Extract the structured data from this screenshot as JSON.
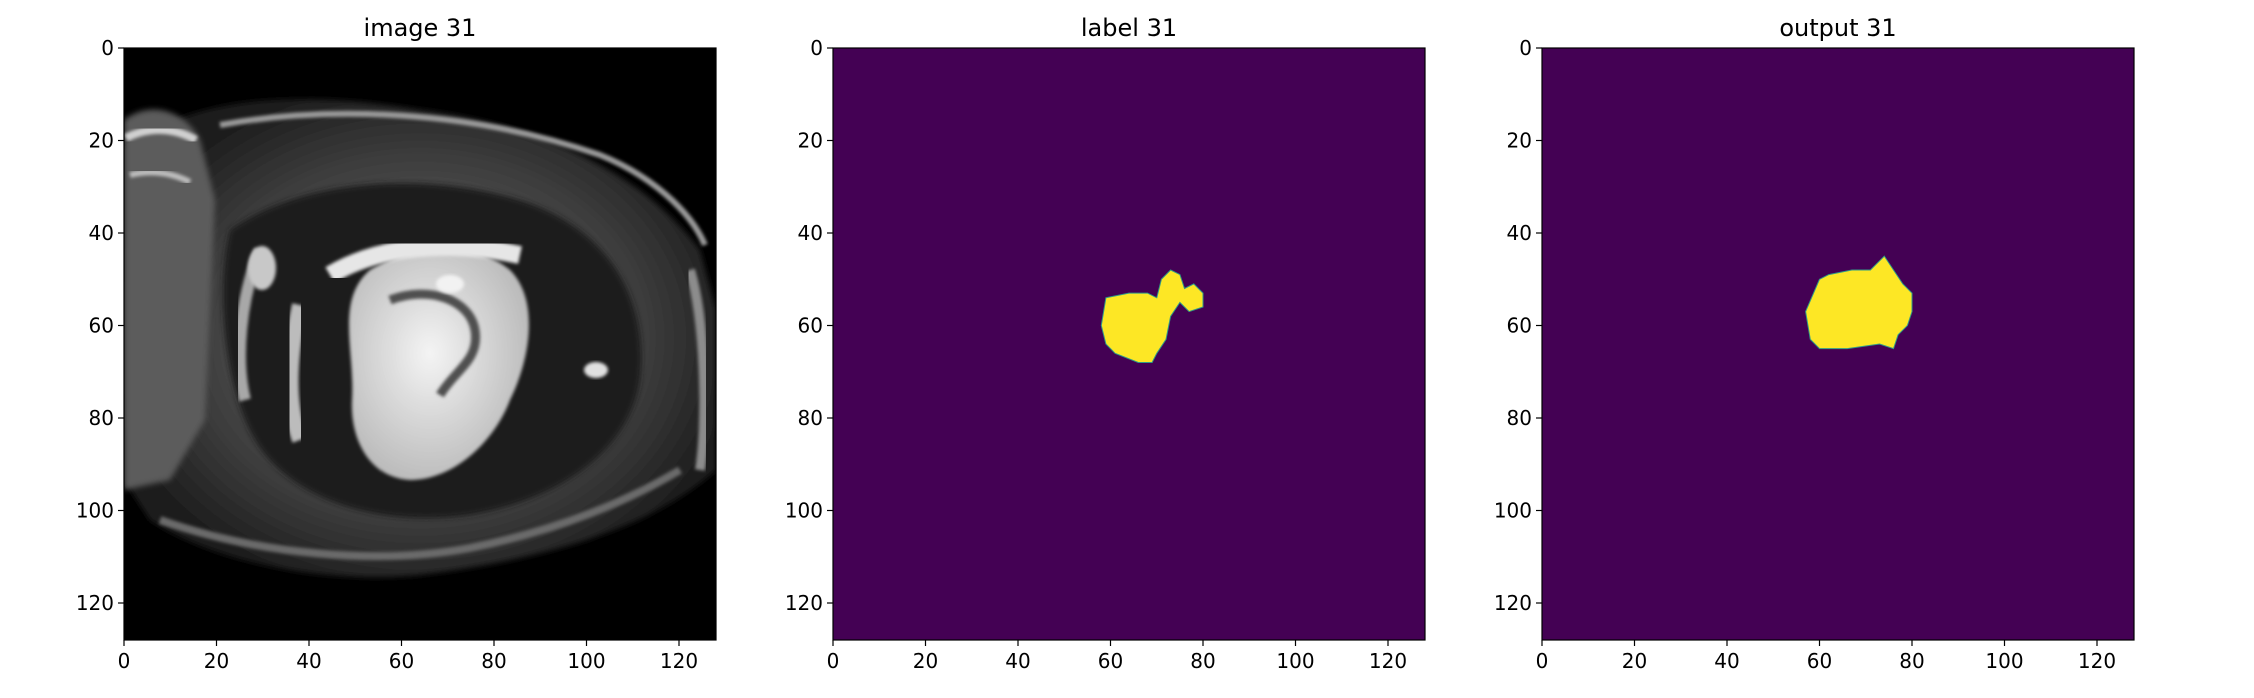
{
  "figure": {
    "panels": [
      {
        "title": "image 31",
        "kind": "grayscale-mri-slice"
      },
      {
        "title": "label 31",
        "kind": "segmentation-mask"
      },
      {
        "title": "output 31",
        "kind": "segmentation-mask"
      }
    ]
  },
  "chart_data": [
    {
      "type": "heatmap",
      "title": "image 31",
      "xlabel": "",
      "ylabel": "",
      "xlim": [
        0,
        128
      ],
      "ylim": [
        128,
        0
      ],
      "xticks": [
        0,
        20,
        40,
        60,
        80,
        100,
        120
      ],
      "yticks": [
        0,
        20,
        40,
        60,
        80,
        100,
        120
      ],
      "colormap": "gray",
      "content": "grayscale MRI slice"
    },
    {
      "type": "heatmap",
      "title": "label 31",
      "xlabel": "",
      "ylabel": "",
      "xlim": [
        0,
        128
      ],
      "ylim": [
        128,
        0
      ],
      "xticks": [
        0,
        20,
        40,
        60,
        80,
        100,
        120
      ],
      "yticks": [
        0,
        20,
        40,
        60,
        80,
        100,
        120
      ],
      "colormap": "viridis",
      "background_color": "#440154",
      "foreground_color": "#fde725",
      "mask_regions": [
        {
          "points": [
            [
              59,
              54
            ],
            [
              64,
              53
            ],
            [
              68,
              53
            ],
            [
              70,
              54
            ],
            [
              71,
              50
            ],
            [
              73,
              48
            ],
            [
              75,
              49
            ],
            [
              76,
              52
            ],
            [
              78,
              51
            ],
            [
              80,
              53
            ],
            [
              80,
              56
            ],
            [
              77,
              57
            ],
            [
              75,
              55
            ],
            [
              73,
              58
            ],
            [
              72,
              63
            ],
            [
              70,
              66
            ],
            [
              69,
              68
            ],
            [
              66,
              68
            ],
            [
              61,
              66
            ],
            [
              59,
              64
            ],
            [
              58,
              60
            ]
          ]
        }
      ]
    },
    {
      "type": "heatmap",
      "title": "output 31",
      "xlabel": "",
      "ylabel": "",
      "xlim": [
        0,
        128
      ],
      "ylim": [
        128,
        0
      ],
      "xticks": [
        0,
        20,
        40,
        60,
        80,
        100,
        120
      ],
      "yticks": [
        0,
        20,
        40,
        60,
        80,
        100,
        120
      ],
      "colormap": "viridis",
      "background_color": "#440154",
      "foreground_color": "#fde725",
      "mask_regions": [
        {
          "points": [
            [
              60,
              50
            ],
            [
              62,
              49
            ],
            [
              67,
              48
            ],
            [
              71,
              48
            ],
            [
              73,
              46
            ],
            [
              74,
              45
            ],
            [
              76,
              48
            ],
            [
              78,
              51
            ],
            [
              80,
              53
            ],
            [
              80,
              57
            ],
            [
              79,
              60
            ],
            [
              77,
              62
            ],
            [
              76,
              65
            ],
            [
              73,
              64
            ],
            [
              66,
              65
            ],
            [
              60,
              65
            ],
            [
              58,
              63
            ],
            [
              57,
              57
            ]
          ]
        }
      ]
    }
  ]
}
